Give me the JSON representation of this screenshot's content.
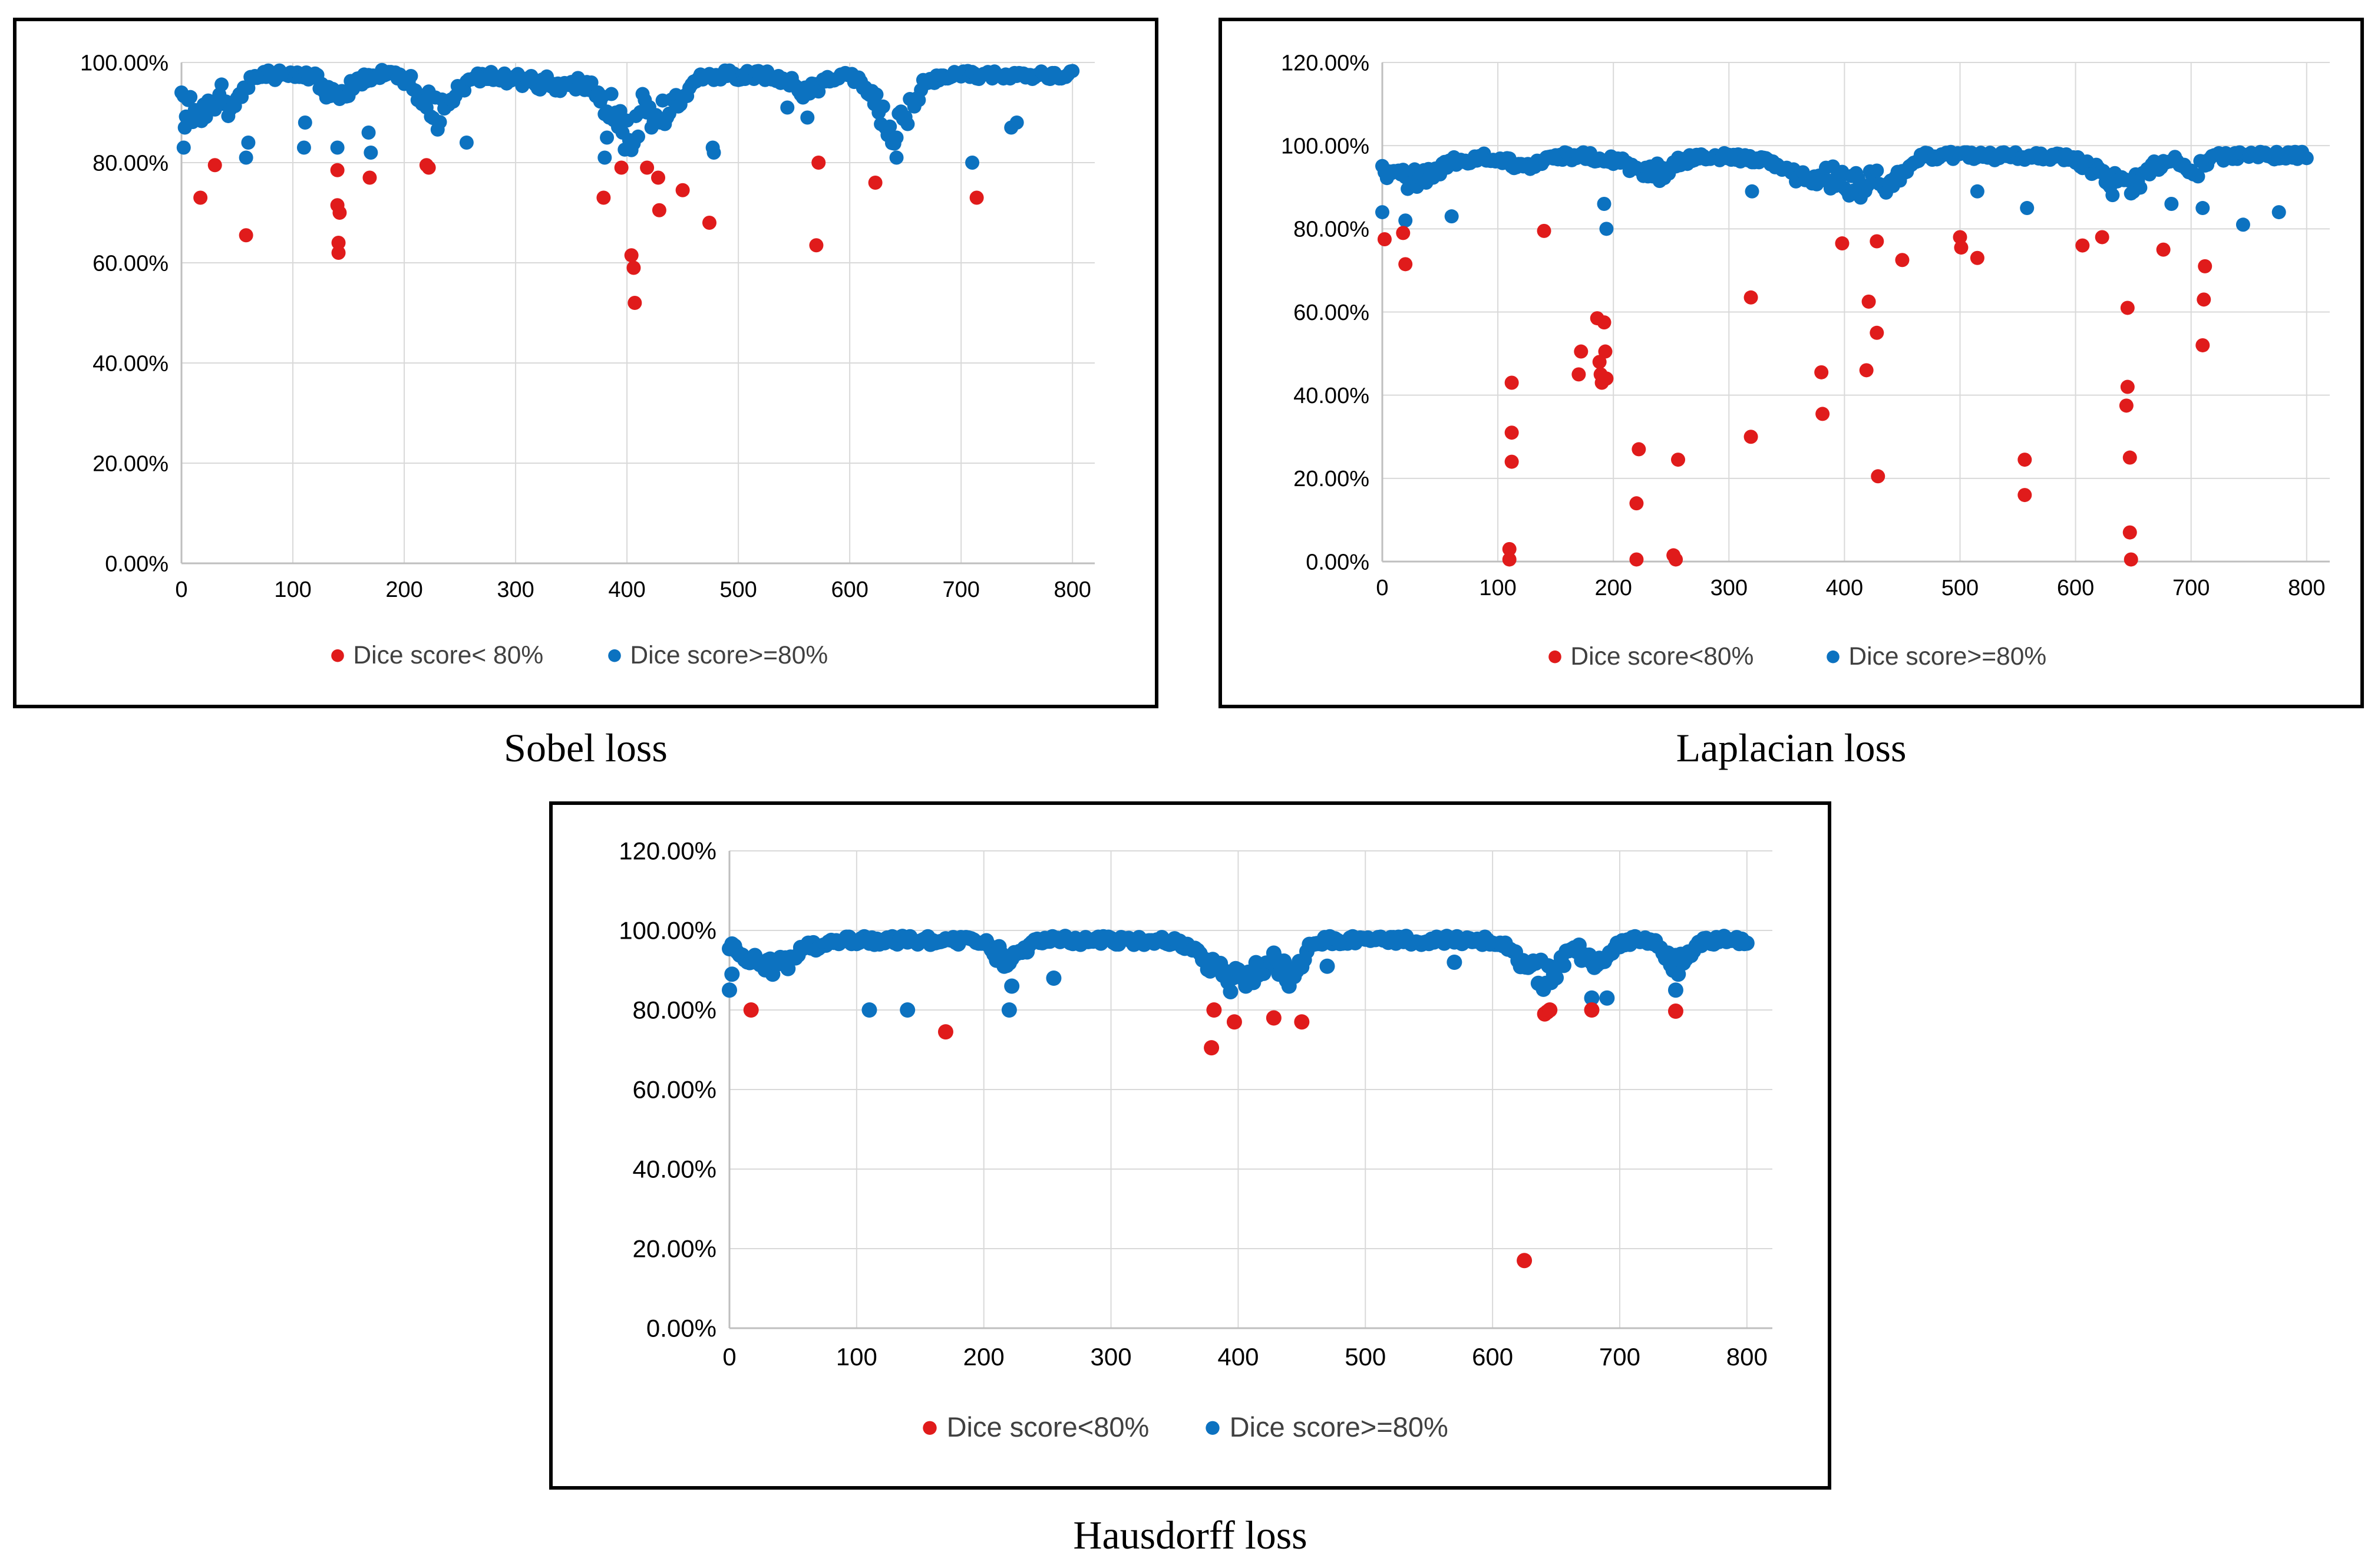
{
  "colors": {
    "low": "#e01b1b",
    "high": "#0c72c0",
    "grid": "#d9d9d9",
    "axis": "#bfbfbf"
  },
  "chart_data": [
    {
      "type": "scatter",
      "caption": "Sobel loss",
      "xlim": [
        0,
        820
      ],
      "ylim": [
        0,
        1.0
      ],
      "xticks": [
        0,
        100,
        200,
        300,
        400,
        500,
        600,
        700,
        800
      ],
      "yticks": [
        0,
        0.2,
        0.4,
        0.6,
        0.8,
        1.0
      ],
      "xtick_labels": [
        "0",
        "100",
        "200",
        "300",
        "400",
        "500",
        "600",
        "700",
        "800"
      ],
      "ytick_labels": [
        "0.00%",
        "20.00%",
        "40.00%",
        "60.00%",
        "80.00%",
        "100.00%"
      ],
      "grid": true,
      "legend_position": "bottom",
      "series": [
        {
          "name": "Dice score< 80%",
          "color": "#e01b1b",
          "points": [
            [
              17,
              0.73
            ],
            [
              30,
              0.795
            ],
            [
              58,
              0.655
            ],
            [
              140,
              0.785
            ],
            [
              140,
              0.715
            ],
            [
              141,
              0.64
            ],
            [
              141,
              0.62
            ],
            [
              142,
              0.7
            ],
            [
              169,
              0.77
            ],
            [
              220,
              0.795
            ],
            [
              222,
              0.79
            ],
            [
              379,
              0.73
            ],
            [
              395,
              0.79
            ],
            [
              404,
              0.615
            ],
            [
              406,
              0.59
            ],
            [
              407,
              0.52
            ],
            [
              418,
              0.79
            ],
            [
              428,
              0.77
            ],
            [
              429,
              0.705
            ],
            [
              450,
              0.745
            ],
            [
              474,
              0.68
            ],
            [
              570,
              0.635
            ],
            [
              572,
              0.8
            ],
            [
              623,
              0.76
            ],
            [
              714,
              0.73
            ]
          ]
        },
        {
          "name": "Dice score>=80%",
          "color": "#0c72c0",
          "points": []
        }
      ]
    },
    {
      "type": "scatter",
      "caption": "Laplacian loss",
      "xlim": [
        0,
        820
      ],
      "ylim": [
        0,
        1.2
      ],
      "xticks": [
        0,
        100,
        200,
        300,
        400,
        500,
        600,
        700,
        800
      ],
      "yticks": [
        0,
        0.2,
        0.4,
        0.6,
        0.8,
        1.0,
        1.2
      ],
      "xtick_labels": [
        "0",
        "100",
        "200",
        "300",
        "400",
        "500",
        "600",
        "700",
        "800"
      ],
      "ytick_labels": [
        "0.00%",
        "20.00%",
        "40.00%",
        "60.00%",
        "80.00%",
        "100.00%",
        "120.00%"
      ],
      "grid": true,
      "legend_position": "bottom",
      "series": [
        {
          "name": "Dice score<80%",
          "color": "#e01b1b",
          "points": [
            [
              2,
              0.775
            ],
            [
              18,
              0.79
            ],
            [
              20,
              0.715
            ],
            [
              110,
              0.03
            ],
            [
              110,
              0.005
            ],
            [
              112,
              0.43
            ],
            [
              112,
              0.31
            ],
            [
              112,
              0.24
            ],
            [
              140,
              0.795
            ],
            [
              170,
              0.45
            ],
            [
              172,
              0.505
            ],
            [
              186,
              0.585
            ],
            [
              188,
              0.48
            ],
            [
              189,
              0.45
            ],
            [
              190,
              0.43
            ],
            [
              192,
              0.575
            ],
            [
              193,
              0.505
            ],
            [
              194,
              0.44
            ],
            [
              220,
              0.14
            ],
            [
              222,
              0.27
            ],
            [
              220,
              0.005
            ],
            [
              252,
              0.015
            ],
            [
              254,
              0.005
            ],
            [
              256,
              0.245
            ],
            [
              319,
              0.635
            ],
            [
              319,
              0.3
            ],
            [
              380,
              0.455
            ],
            [
              381,
              0.355
            ],
            [
              398,
              0.765
            ],
            [
              419,
              0.46
            ],
            [
              421,
              0.625
            ],
            [
              428,
              0.77
            ],
            [
              428,
              0.55
            ],
            [
              429,
              0.205
            ],
            [
              450,
              0.725
            ],
            [
              500,
              0.78
            ],
            [
              501,
              0.755
            ],
            [
              515,
              0.73
            ],
            [
              556,
              0.245
            ],
            [
              556,
              0.16
            ],
            [
              606,
              0.76
            ],
            [
              623,
              0.78
            ],
            [
              644,
              0.375
            ],
            [
              645,
              0.42
            ],
            [
              645,
              0.61
            ],
            [
              647,
              0.25
            ],
            [
              647,
              0.07
            ],
            [
              648,
              0.005
            ],
            [
              676,
              0.75
            ],
            [
              710,
              0.52
            ],
            [
              711,
              0.63
            ],
            [
              712,
              0.71
            ]
          ]
        },
        {
          "name": "Dice score>=80%",
          "color": "#0c72c0",
          "points": []
        }
      ]
    },
    {
      "type": "scatter",
      "caption": "Hausdorff loss",
      "xlim": [
        0,
        820
      ],
      "ylim": [
        0,
        1.2
      ],
      "xticks": [
        0,
        100,
        200,
        300,
        400,
        500,
        600,
        700,
        800
      ],
      "yticks": [
        0,
        0.2,
        0.4,
        0.6,
        0.8,
        1.0,
        1.2
      ],
      "xtick_labels": [
        "0",
        "100",
        "200",
        "300",
        "400",
        "500",
        "600",
        "700",
        "800"
      ],
      "ytick_labels": [
        "0.00%",
        "20.00%",
        "40.00%",
        "60.00%",
        "80.00%",
        "100.00%",
        "120.00%"
      ],
      "grid": true,
      "legend_position": "bottom",
      "series": [
        {
          "name": "Dice score<80%",
          "color": "#e01b1b",
          "points": [
            [
              17,
              0.8
            ],
            [
              170,
              0.745
            ],
            [
              379,
              0.705
            ],
            [
              381,
              0.8
            ],
            [
              397,
              0.77
            ],
            [
              428,
              0.78
            ],
            [
              450,
              0.77
            ],
            [
              625,
              0.17
            ],
            [
              641,
              0.79
            ],
            [
              643,
              0.795
            ],
            [
              645,
              0.8
            ],
            [
              678,
              0.8
            ],
            [
              744,
              0.797
            ]
          ]
        },
        {
          "name": "Dice score>=80%",
          "color": "#0c72c0",
          "points": []
        }
      ]
    }
  ]
}
